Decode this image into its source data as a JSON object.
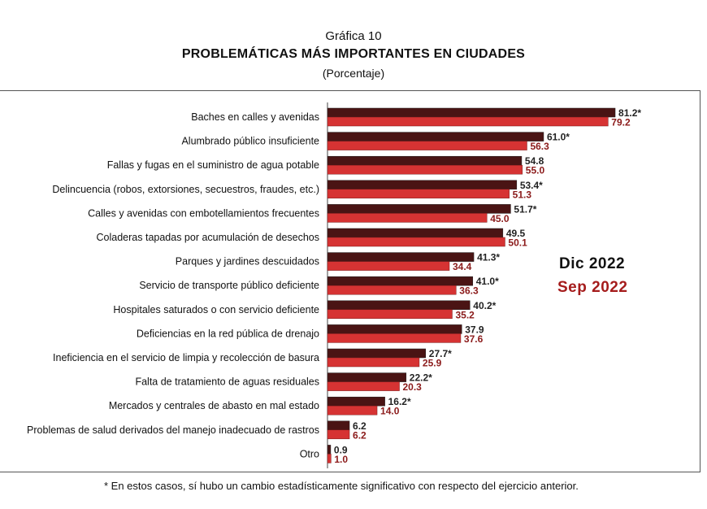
{
  "header": {
    "title": "Gráfica 10",
    "subtitle": "PROBLEMÁTICAS MÁS IMPORTANTES EN CIUDADES",
    "unit": "(Porcentaje)"
  },
  "legend": {
    "series_a": "Dic 2022",
    "series_b": "Sep 2022"
  },
  "footnote": "* En estos casos, sí hubo un cambio estadísticamente significativo con respecto del ejercicio anterior.",
  "colors": {
    "series_a": "#4a1414",
    "series_b": "#d63333",
    "label_b": "#8b1a1a"
  },
  "chart_data": {
    "type": "bar",
    "orientation": "horizontal",
    "title": "PROBLEMÁTICAS MÁS IMPORTANTES EN CIUDADES",
    "categories": [
      "Baches en calles y avenidas",
      "Alumbrado público insuficiente",
      "Fallas y fugas en el suministro de agua potable",
      "Delincuencia (robos, extorsiones, secuestros, fraudes, etc.)",
      "Calles y avenidas con embotellamientos frecuentes",
      "Coladeras tapadas por acumulación de desechos",
      "Parques y jardines descuidados",
      "Servicio de transporte público deficiente",
      "Hospitales saturados o con servicio deficiente",
      "Deficiencias en la red pública de drenajo",
      "Ineficiencia en el servicio de limpia y recolección de basura",
      "Falta de tratamiento de aguas residuales",
      "Mercados y centrales de abasto en mal estado",
      "Problemas de salud derivados del manejo inadecuado de rastros",
      "Otro"
    ],
    "series": [
      {
        "name": "Dic 2022",
        "values": [
          81.2,
          61.0,
          54.8,
          53.4,
          51.7,
          49.5,
          41.3,
          41.0,
          40.2,
          37.9,
          27.7,
          22.2,
          16.2,
          6.2,
          0.9
        ],
        "labels": [
          "81.2*",
          "61.0*",
          "54.8",
          "53.4*",
          "51.7*",
          "49.5",
          "41.3*",
          "41.0*",
          "40.2*",
          "37.9",
          "27.7*",
          "22.2*",
          "16.2*",
          "6.2",
          "0.9"
        ]
      },
      {
        "name": "Sep 2022",
        "values": [
          79.2,
          56.3,
          55.0,
          51.3,
          45.0,
          50.1,
          34.4,
          36.3,
          35.2,
          37.6,
          25.9,
          20.3,
          14.0,
          6.2,
          1.0
        ],
        "labels": [
          "79.2",
          "56.3",
          "55.0",
          "51.3",
          "45.0",
          "50.1",
          "34.4",
          "36.3",
          "35.2",
          "37.6",
          "25.9",
          "20.3",
          "14.0",
          "6.2",
          "1.0"
        ]
      }
    ],
    "xlim": [
      0,
      100
    ],
    "grid": false,
    "legend_position": "right"
  }
}
